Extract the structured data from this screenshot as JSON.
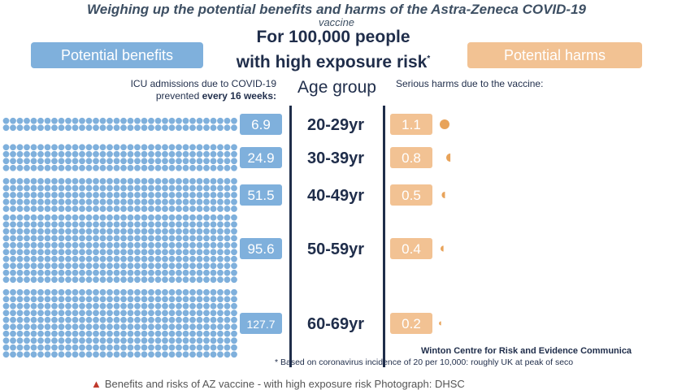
{
  "title": "Weighing up the potential benefits and harms of the Astra-Zeneca COVID-19",
  "title_overflow": "vaccine",
  "headline": {
    "line1": "For 100,000 people",
    "line2": "with high exposure risk",
    "mark": "*"
  },
  "benefits_label": "Potential benefits",
  "harms_label": "Potential harms",
  "benefits_sub": {
    "line1": "ICU admissions due to COVID-19",
    "line2_prefix": "prevented ",
    "line2_bold": "every 16 weeks:"
  },
  "harms_sub": "Serious harms due to the vaccine:",
  "age_header": "Age group",
  "footer_credit": "Winton Centre for Risk and Evidence Communica",
  "footnote": "* Based on coronavirus incidence of 20 per 10,000: roughly UK at peak of seco",
  "caption": "Benefits and risks of AZ vaccine - with high exposure risk Photograph: DHSC",
  "colors": {
    "benefit": "#7fb0dc",
    "harm": "#f2c293",
    "text": "#1f2d4a"
  },
  "chart_data": {
    "type": "bar",
    "categories": [
      "20-29yr",
      "30-39yr",
      "40-49yr",
      "50-59yr",
      "60-69yr"
    ],
    "series": [
      {
        "name": "Potential benefits",
        "values": [
          6.9,
          24.9,
          51.5,
          95.6,
          127.7
        ]
      },
      {
        "name": "Potential harms",
        "values": [
          1.1,
          0.8,
          0.5,
          0.4,
          0.2
        ]
      }
    ]
  }
}
